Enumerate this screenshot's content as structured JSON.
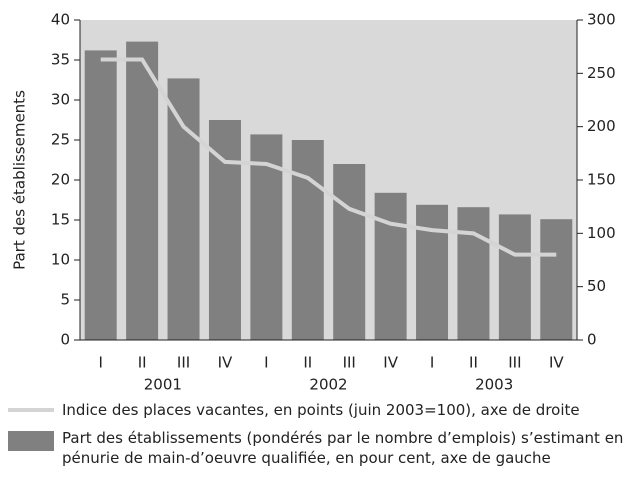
{
  "chart_data": {
    "type": "bar_line",
    "ylabel": "Part des établissements",
    "categories": [
      "I",
      "II",
      "III",
      "IV",
      "I",
      "II",
      "III",
      "IV",
      "I",
      "II",
      "III",
      "IV"
    ],
    "groups": [
      {
        "label": "2001",
        "size": 4
      },
      {
        "label": "2002",
        "size": 4
      },
      {
        "label": "2003",
        "size": 4
      }
    ],
    "series": [
      {
        "name": "Part des établissements (pondérés par le nombre d’emplois) s’estimant en pénurie de main-d’oeuvre qualifiée, en pour cent, axe de gauche",
        "type": "bar",
        "color": "#808080",
        "values": [
          36.2,
          37.3,
          32.7,
          27.5,
          25.7,
          25.0,
          22.0,
          18.4,
          16.9,
          16.6,
          15.7,
          15.1
        ]
      },
      {
        "name": "Indice des places vacantes, en points (juin 2003=100), axe de droite",
        "type": "line",
        "axis": "y2",
        "color": "#d4d4d4",
        "values": [
          263,
          263,
          200,
          167,
          165,
          152,
          123,
          109,
          103,
          100,
          80,
          80
        ]
      }
    ],
    "ylim": [
      0,
      40
    ],
    "yticks": [
      0,
      5,
      10,
      15,
      20,
      25,
      30,
      35,
      40
    ],
    "y2lim": [
      0,
      300
    ],
    "y2ticks": [
      0,
      50,
      100,
      150,
      200,
      250,
      300
    ],
    "plot_background": "#d9d9d9"
  }
}
